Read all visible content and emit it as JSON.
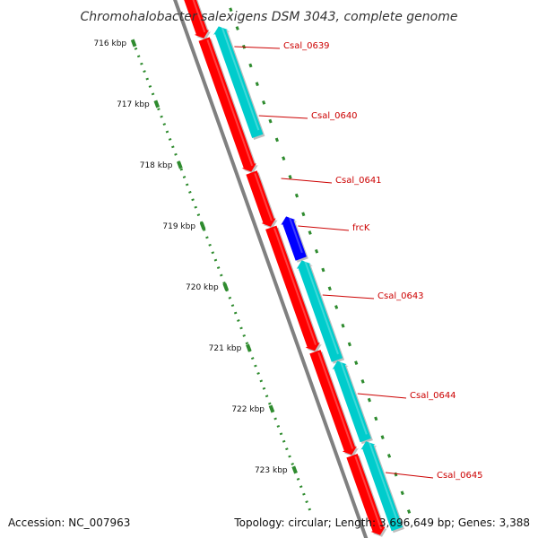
{
  "title": "Chromohalobacter salexigens DSM 3043, complete genome",
  "footer": {
    "accession": "Accession: NC_007963",
    "summary": "Topology: circular; Length: 3,696,649 bp; Genes: 3,388"
  },
  "colors": {
    "background": "#ffffff",
    "backbone": "#808080",
    "ruler": "#2e8b2e",
    "gene_forward": "#ff0000",
    "gene_reverse": "#00cccc",
    "gene_highlight": "#0000ff",
    "label": "#cc0000"
  },
  "ruler": {
    "unit": "kbp",
    "ticks": [
      {
        "value": 716,
        "label": "716 kbp"
      },
      {
        "value": 717,
        "label": "717 kbp"
      },
      {
        "value": 718,
        "label": "718 kbp"
      },
      {
        "value": 719,
        "label": "719 kbp"
      },
      {
        "value": 720,
        "label": "720 kbp"
      },
      {
        "value": 721,
        "label": "721 kbp"
      },
      {
        "value": 722,
        "label": "722 kbp"
      },
      {
        "value": 723,
        "label": "723 kbp"
      }
    ]
  },
  "genes": [
    {
      "name": "Csal_0639",
      "strand": "reverse",
      "color": "#00cccc",
      "labeled": true
    },
    {
      "name": "Csal_0640",
      "strand": "reverse",
      "color": "#00cccc",
      "labeled": true
    },
    {
      "name": "Csal_0641",
      "strand": "forward",
      "color": "#ff0000",
      "labeled": true
    },
    {
      "name": "frcK",
      "strand": "reverse",
      "color": "#0000ff",
      "labeled": true
    },
    {
      "name": "Csal_0643",
      "strand": "reverse",
      "color": "#00cccc",
      "labeled": true
    },
    {
      "name": "Csal_0644",
      "strand": "reverse",
      "color": "#00cccc",
      "labeled": true
    },
    {
      "name": "Csal_0645",
      "strand": "reverse",
      "color": "#00cccc",
      "labeled": true
    }
  ]
}
